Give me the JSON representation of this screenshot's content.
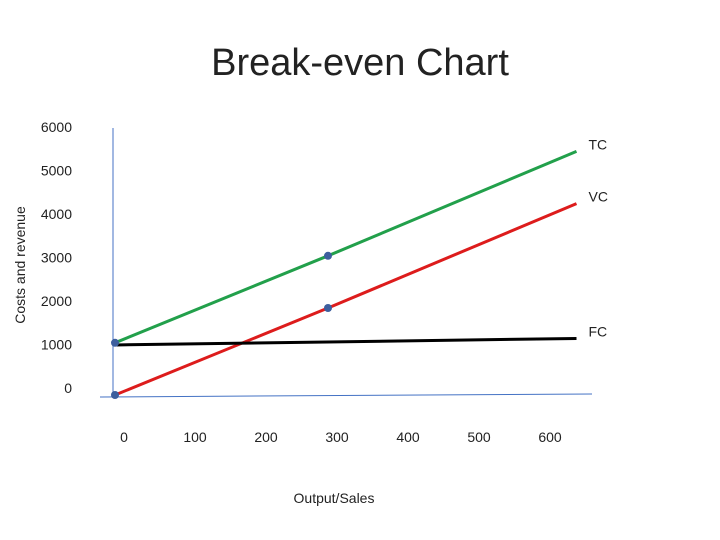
{
  "chart_data": {
    "type": "line",
    "title": "Break-even Chart",
    "xlabel": "Output/Sales",
    "ylabel": "Costs and revenue",
    "x_ticks": [
      0,
      100,
      200,
      300,
      400,
      500,
      600
    ],
    "y_ticks": [
      0,
      1000,
      2000,
      3000,
      4000,
      5000,
      6000
    ],
    "xlim": [
      0,
      600
    ],
    "ylim": [
      0,
      6000
    ],
    "grid": false,
    "legend": "none",
    "series": [
      {
        "name": "TC",
        "color": "#22a04b",
        "x": [
          0,
          300,
          650
        ],
        "y": [
          1200,
          3200,
          5600
        ],
        "markers": [
          0,
          300
        ]
      },
      {
        "name": "VC",
        "color": "#dd1c1c",
        "x": [
          0,
          300,
          650
        ],
        "y": [
          0,
          2000,
          4400
        ],
        "markers": [
          0,
          300
        ]
      },
      {
        "name": "FC",
        "color": "#000000",
        "x": [
          0,
          650
        ],
        "y": [
          1150,
          1300
        ],
        "markers": []
      }
    ],
    "marker_color": "#3d5f9e"
  }
}
